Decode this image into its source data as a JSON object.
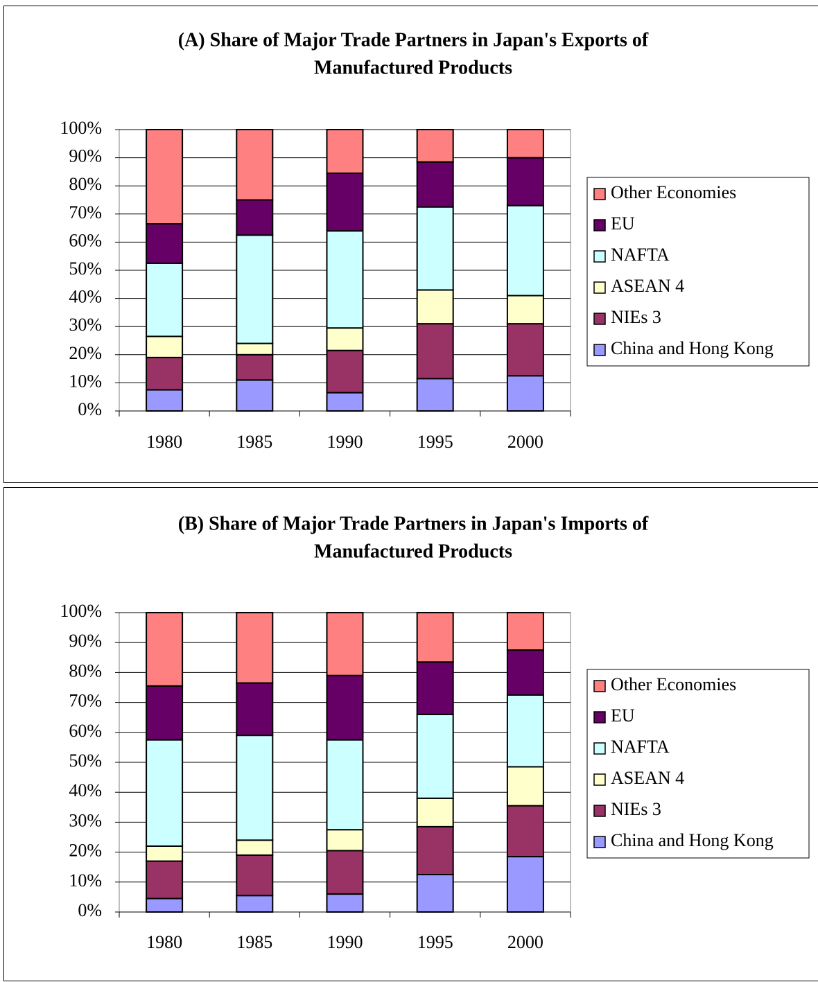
{
  "chart_data": [
    {
      "type": "stacked_bar",
      "title": [
        "(A) Share of Major Trade Partners in Japan's Exports of",
        "Manufactured Products"
      ],
      "categories": [
        "1980",
        "1985",
        "1990",
        "1995",
        "2000"
      ],
      "ylim": [
        0,
        100
      ],
      "yticks": [
        {
          "value": 0,
          "label": "0%"
        },
        {
          "value": 10,
          "label": "10%"
        },
        {
          "value": 20,
          "label": "20%"
        },
        {
          "value": 30,
          "label": "30%"
        },
        {
          "value": 40,
          "label": "40%"
        },
        {
          "value": 50,
          "label": "50%"
        },
        {
          "value": 60,
          "label": "60%"
        },
        {
          "value": 70,
          "label": "70%"
        },
        {
          "value": 80,
          "label": "80%"
        },
        {
          "value": 90,
          "label": "90%"
        },
        {
          "value": 100,
          "label": "100%"
        }
      ],
      "grid": true,
      "legend": "right",
      "series": [
        {
          "name": "China and Hong Kong",
          "color": "#9999ff",
          "values": [
            7.5,
            11,
            6.5,
            11.5,
            12.5
          ]
        },
        {
          "name": "NIEs 3",
          "color": "#993366",
          "values": [
            11.5,
            9,
            15,
            19.5,
            18.5
          ]
        },
        {
          "name": "ASEAN 4",
          "color": "#ffffcc",
          "values": [
            7.5,
            4,
            8,
            12,
            10
          ]
        },
        {
          "name": "NAFTA",
          "color": "#ccffff",
          "values": [
            26,
            38.5,
            34.5,
            29.5,
            32
          ]
        },
        {
          "name": "EU",
          "color": "#660066",
          "values": [
            14,
            12.5,
            20.5,
            16,
            17
          ]
        },
        {
          "name": "Other Economies",
          "color": "#ff8080",
          "values": [
            33.5,
            25,
            15.5,
            11.5,
            10
          ]
        }
      ]
    },
    {
      "type": "stacked_bar",
      "title": [
        "(B) Share of Major Trade Partners in Japan's Imports of",
        "Manufactured Products"
      ],
      "categories": [
        "1980",
        "1985",
        "1990",
        "1995",
        "2000"
      ],
      "ylim": [
        0,
        100
      ],
      "yticks": [
        {
          "value": 0,
          "label": "0%"
        },
        {
          "value": 10,
          "label": "10%"
        },
        {
          "value": 20,
          "label": "20%"
        },
        {
          "value": 30,
          "label": "30%"
        },
        {
          "value": 40,
          "label": "40%"
        },
        {
          "value": 50,
          "label": "50%"
        },
        {
          "value": 60,
          "label": "60%"
        },
        {
          "value": 70,
          "label": "70%"
        },
        {
          "value": 80,
          "label": "80%"
        },
        {
          "value": 90,
          "label": "90%"
        },
        {
          "value": 100,
          "label": "100%"
        }
      ],
      "grid": true,
      "legend": "right",
      "series": [
        {
          "name": "China and Hong Kong",
          "color": "#9999ff",
          "values": [
            4.5,
            5.5,
            6,
            12.5,
            18.5
          ]
        },
        {
          "name": "NIEs 3",
          "color": "#993366",
          "values": [
            12.5,
            13.5,
            14.5,
            16,
            17
          ]
        },
        {
          "name": "ASEAN 4",
          "color": "#ffffcc",
          "values": [
            5,
            5,
            7,
            9.5,
            13
          ]
        },
        {
          "name": "NAFTA",
          "color": "#ccffff",
          "values": [
            35.5,
            35,
            30,
            28,
            24
          ]
        },
        {
          "name": "EU",
          "color": "#660066",
          "values": [
            18,
            17.5,
            21.5,
            17.5,
            15
          ]
        },
        {
          "name": "Other Economies",
          "color": "#ff8080",
          "values": [
            24.5,
            23.5,
            21,
            16.5,
            12.5
          ]
        }
      ]
    }
  ]
}
